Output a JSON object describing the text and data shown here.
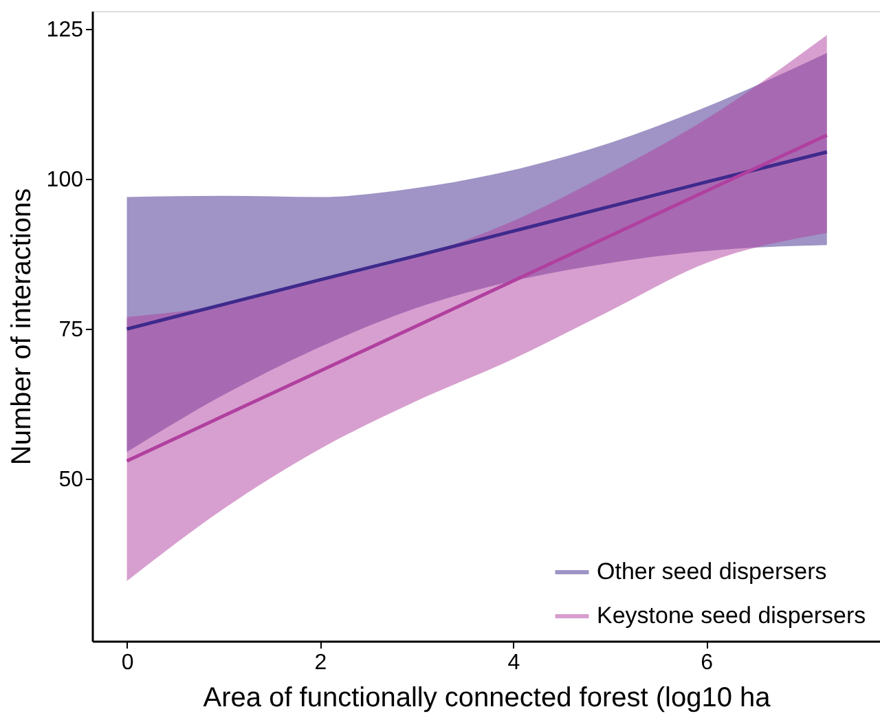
{
  "chart_data": {
    "type": "line",
    "xlabel": "Area of functionally connected forest (log10 ha",
    "ylabel": "Number of interactions",
    "x": [
      0,
      1,
      2,
      3,
      4,
      5,
      6,
      7.25
    ],
    "series": [
      {
        "name": "Other seed dispersers",
        "color": "#3f2a8c",
        "values": [
          75,
          79.1,
          83.2,
          87.2,
          91.3,
          95.4,
          99.5,
          104.5
        ],
        "lower": [
          54.5,
          64,
          72,
          78.5,
          83,
          86,
          88,
          89
        ],
        "upper": [
          97,
          97.2,
          97,
          98.5,
          101.5,
          106,
          112,
          121
        ]
      },
      {
        "name": "Keystone seed dispersers",
        "color": "#b040a0",
        "values": [
          53,
          60.5,
          68,
          75.5,
          83,
          90.5,
          98,
          107.3
        ],
        "lower": [
          33,
          45,
          55,
          63,
          70,
          78,
          86,
          91
        ],
        "upper": [
          77,
          79,
          83,
          87,
          93,
          101,
          110,
          124
        ]
      }
    ],
    "xlim": [
      -0.36,
      7.8
    ],
    "xticks": [
      0,
      2,
      4,
      6
    ],
    "ylim": [
      23,
      128
    ],
    "yticks": [
      50,
      75,
      100,
      125
    ],
    "grid": false,
    "legend": "bottom right",
    "marker": "none",
    "line_style": "solid"
  }
}
